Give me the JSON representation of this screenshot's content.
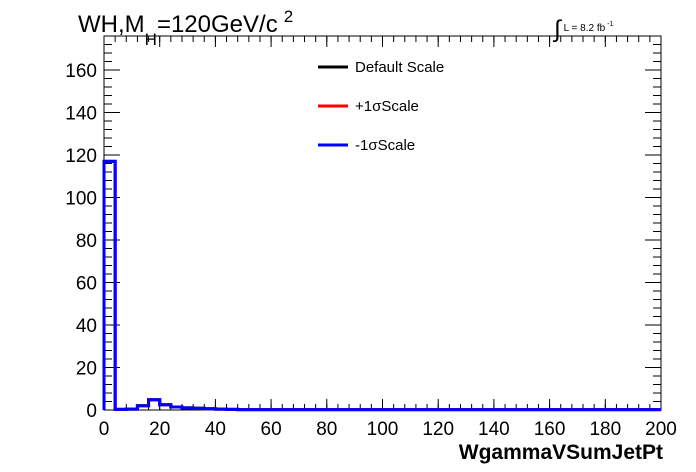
{
  "chart_data": {
    "type": "line",
    "title": {
      "prefix": "WH,M",
      "subscript": "H",
      "value": "=120GeV/c",
      "superscript": "2"
    },
    "lumi": {
      "symbol": "∫",
      "text": "L = 8.2 fb",
      "superscript": "-1"
    },
    "xlabel": "WgammaVSumJetPt",
    "ylabel": "",
    "xlim": [
      0,
      200
    ],
    "ylim": [
      0,
      176
    ],
    "x_ticks": [
      0,
      20,
      40,
      60,
      80,
      100,
      120,
      140,
      160,
      180,
      200
    ],
    "y_ticks": [
      0,
      20,
      40,
      60,
      80,
      100,
      120,
      140,
      160
    ],
    "bin_edges": [
      0,
      4,
      8,
      12,
      16,
      20,
      24,
      28,
      32,
      36,
      40,
      44,
      48,
      200
    ],
    "series": [
      {
        "name": "Default Scale",
        "color": "#000000",
        "values": [
          117,
          0.3,
          0.4,
          2,
          4.8,
          2.5,
          1.4,
          1.0,
          0.8,
          0.6,
          0.4,
          0.3,
          0.2
        ]
      },
      {
        "name": "+1σScale",
        "color": "#ff0000",
        "values": [
          117,
          0.3,
          0.4,
          2,
          4.8,
          2.5,
          1.4,
          1.0,
          0.8,
          0.6,
          0.4,
          0.3,
          0.2
        ]
      },
      {
        "name": "-1σScale",
        "color": "#0000ff",
        "values": [
          117,
          0.3,
          0.4,
          2,
          4.8,
          2.5,
          1.4,
          1.0,
          0.8,
          0.6,
          0.4,
          0.3,
          0.2
        ]
      }
    ],
    "legend": "top-center",
    "grid": false
  }
}
